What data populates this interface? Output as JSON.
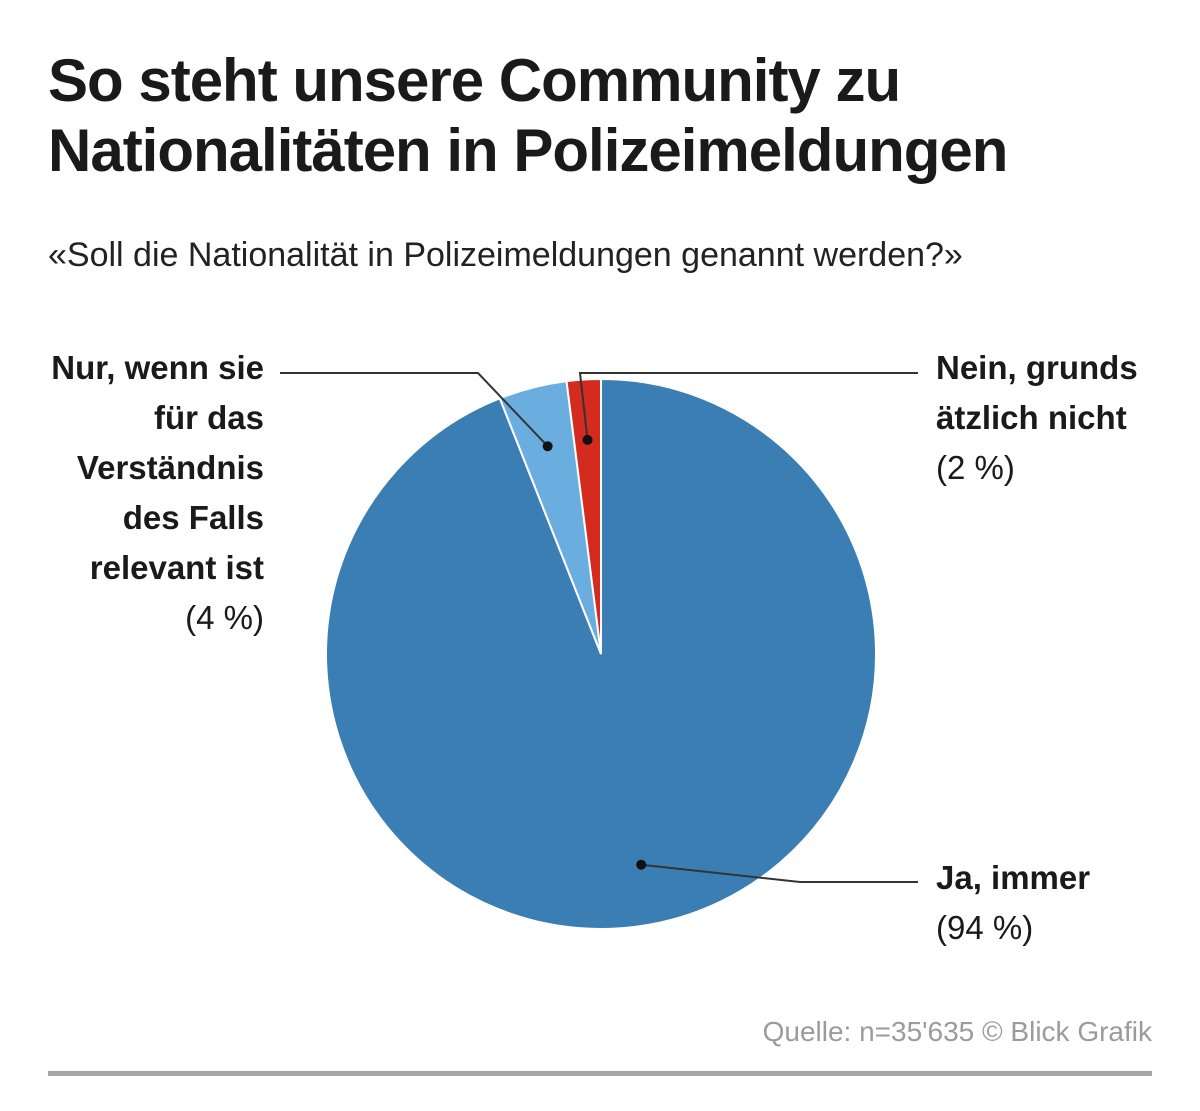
{
  "header": {
    "title": "So steht unsere Community zu Nationalitäten in Polizeimeldungen",
    "subtitle": "«Soll die Nationalität in Polizeimeldungen genannt werden?»"
  },
  "chart_data": {
    "type": "pie",
    "start": "top, clockwise",
    "slices": [
      {
        "label": "Ja, immer",
        "value": 94,
        "display": "(94 %)",
        "color": "#3b7eb4"
      },
      {
        "label": "Nur, wenn sie für das Verständnis des Falls relevant ist",
        "value": 4,
        "display": "(4 %)",
        "color": "#6aaee0"
      },
      {
        "label": "Nein, grundsätzlich nicht",
        "value": 2,
        "display": "(2 %)",
        "color": "#d52b1e"
      }
    ],
    "legend": "labels with leader lines"
  },
  "footer": {
    "source": "Quelle: n=35'635 © Blick Grafik"
  },
  "colors": {
    "text": "#1a1a1a",
    "source_text": "#9b9b9b",
    "rule": "#a6a6a6"
  }
}
